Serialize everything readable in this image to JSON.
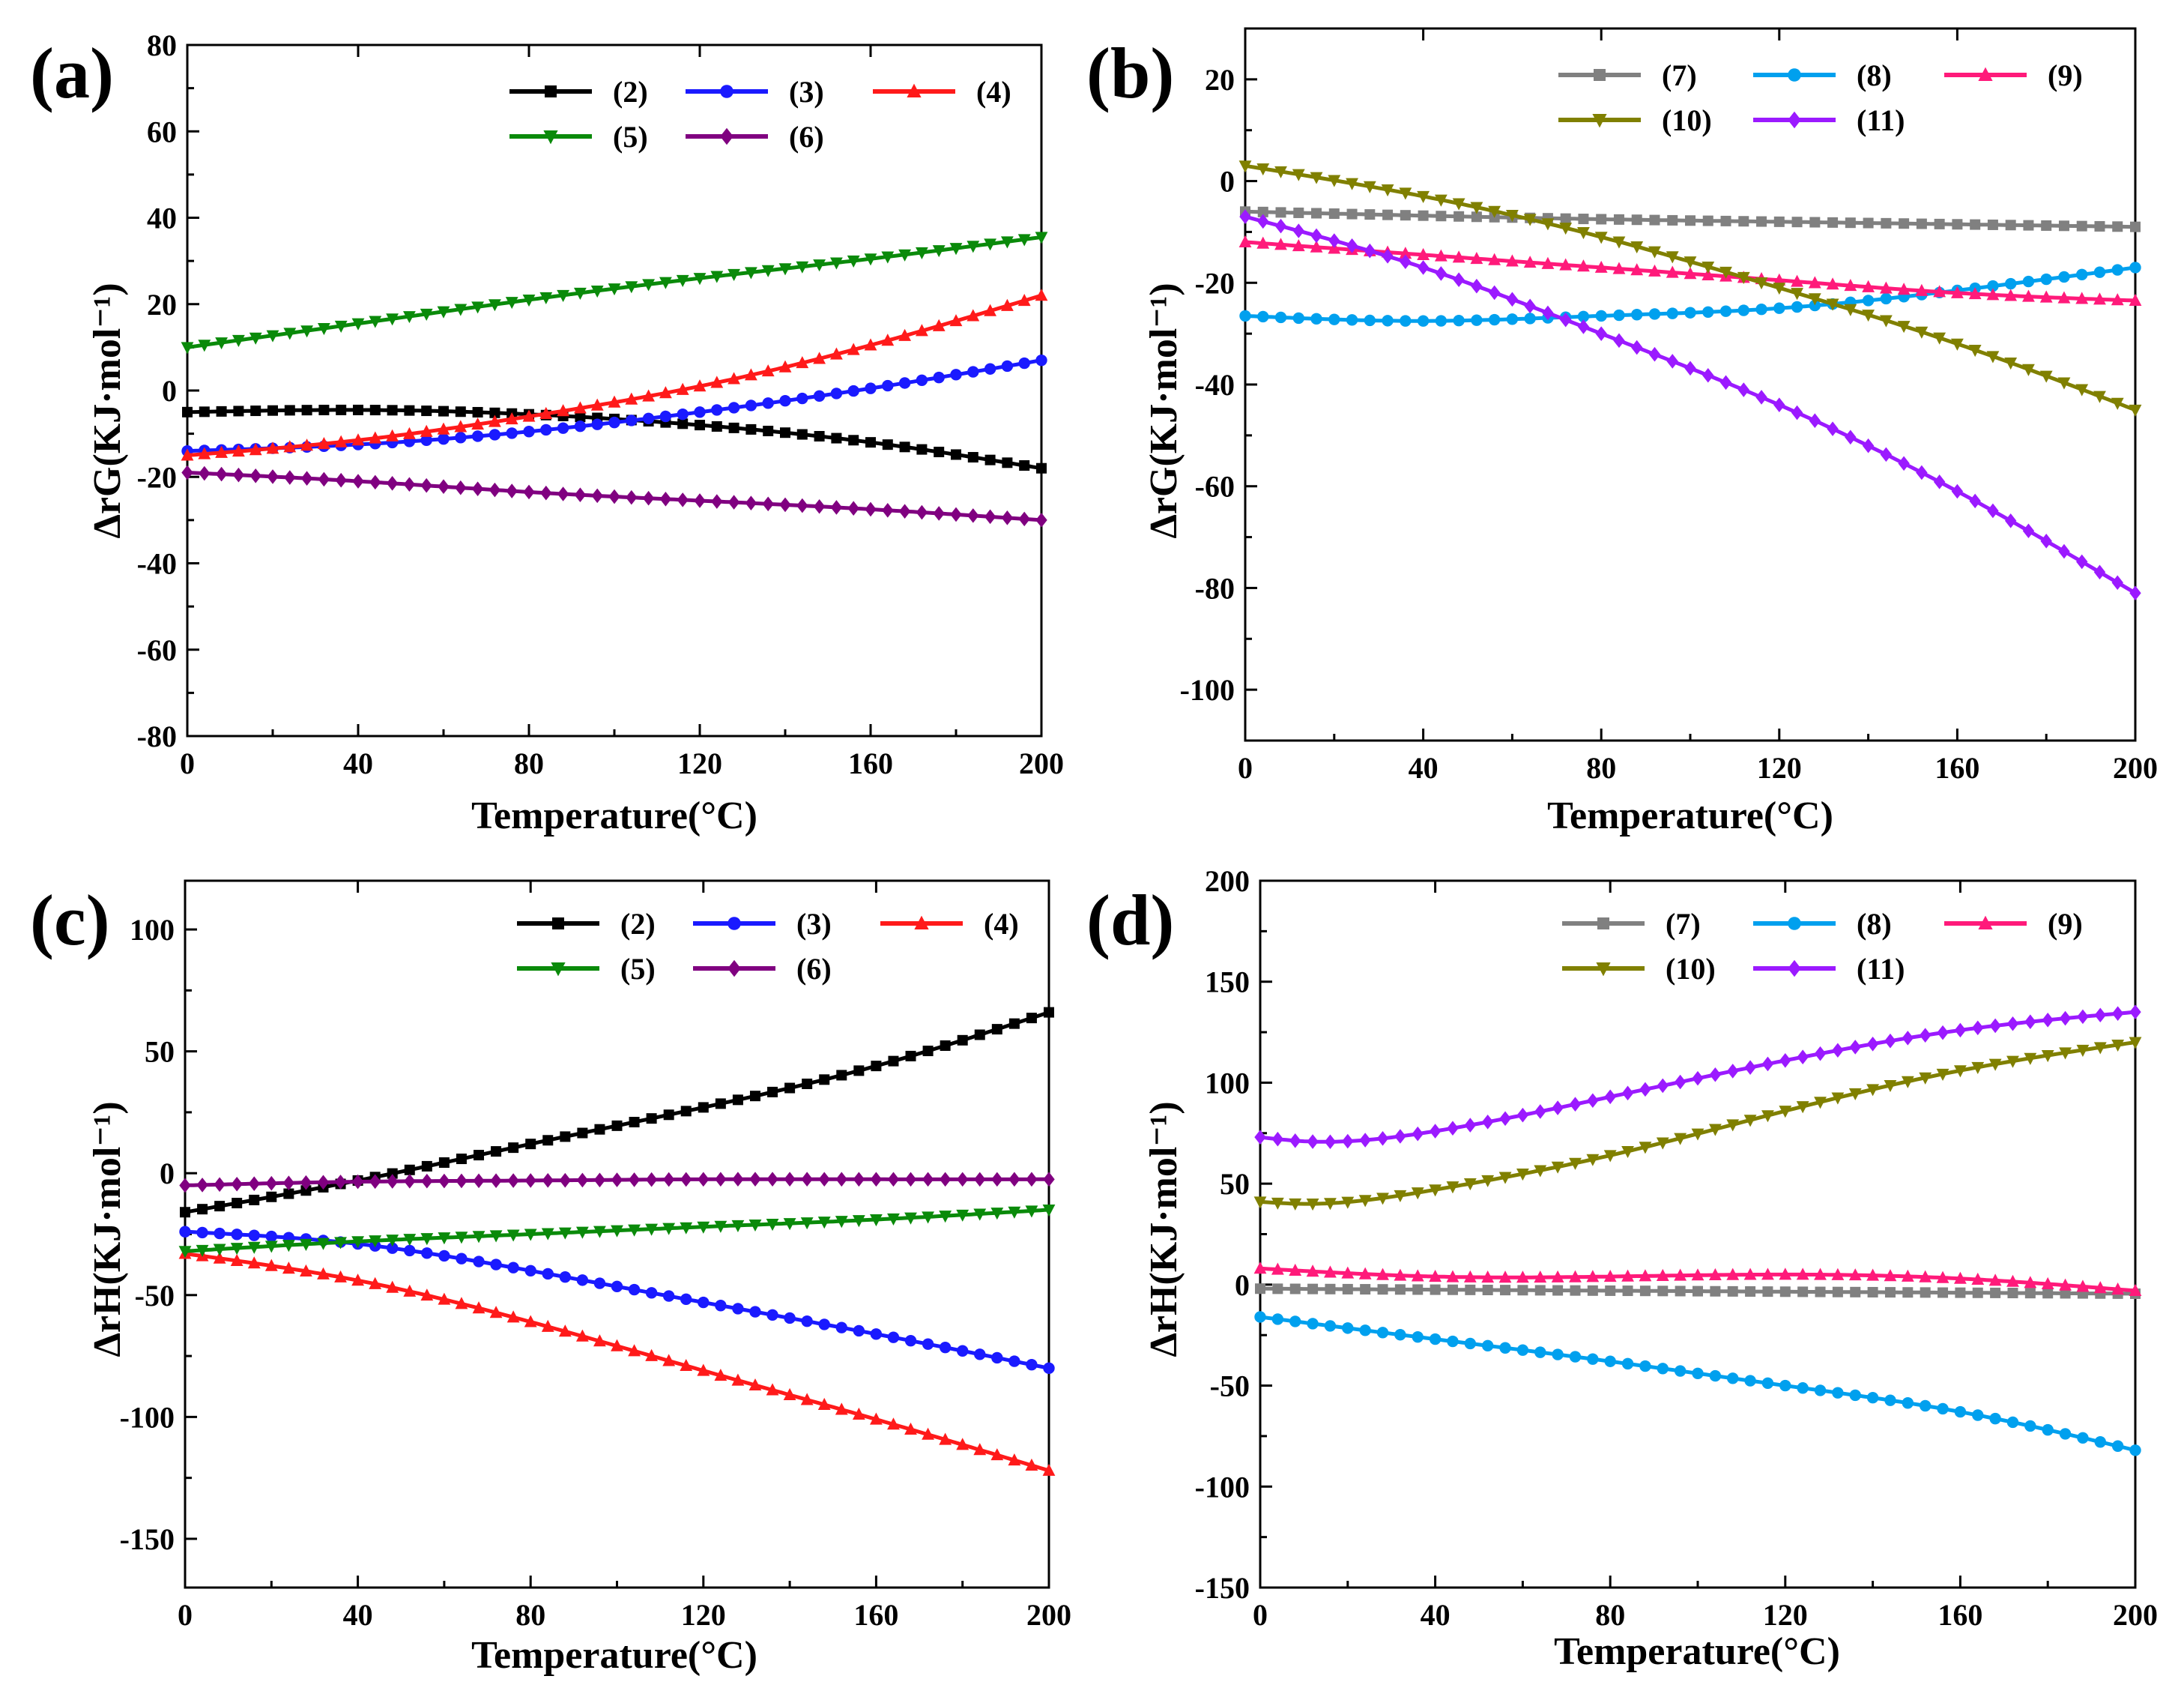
{
  "chart_data": [
    {
      "panel": "(a)",
      "type": "line",
      "xlabel": "Temperature(°C)",
      "ylabel": "ΔrG(KJ·mol⁻¹)",
      "xlim": [
        0,
        200
      ],
      "ylim": [
        -80,
        80
      ],
      "xticks": [
        0,
        40,
        80,
        120,
        160,
        200
      ],
      "yticks": [
        -80,
        -60,
        -40,
        -20,
        0,
        20,
        40,
        60,
        80
      ],
      "legend_position": "top-right",
      "series": [
        {
          "name": "(2)",
          "color": "#000000",
          "marker": "square",
          "x": [
            0,
            40,
            80,
            120,
            160,
            200
          ],
          "y": [
            -5,
            -4.5,
            -5.5,
            -8,
            -12,
            -18
          ]
        },
        {
          "name": "(3)",
          "color": "#1a1aff",
          "marker": "circle",
          "x": [
            0,
            40,
            80,
            120,
            160,
            200
          ],
          "y": [
            -14,
            -12.5,
            -9.5,
            -5,
            0.5,
            7
          ]
        },
        {
          "name": "(4)",
          "color": "#ff1a1a",
          "marker": "triangle-up",
          "x": [
            0,
            40,
            80,
            120,
            160,
            200
          ],
          "y": [
            -15,
            -11.5,
            -6,
            1,
            10.5,
            22
          ]
        },
        {
          "name": "(5)",
          "color": "#0a8a0a",
          "marker": "triangle-down",
          "x": [
            0,
            40,
            80,
            120,
            160,
            200
          ],
          "y": [
            10,
            15.5,
            21,
            26,
            30.5,
            35.5
          ]
        },
        {
          "name": "(6)",
          "color": "#800080",
          "marker": "diamond",
          "x": [
            0,
            40,
            80,
            120,
            160,
            200
          ],
          "y": [
            -19,
            -21,
            -23.5,
            -25.5,
            -27.5,
            -30
          ]
        }
      ]
    },
    {
      "panel": "(b)",
      "type": "line",
      "xlabel": "Temperature(°C)",
      "ylabel": "ΔrG(KJ·mol⁻¹)",
      "xlim": [
        0,
        200
      ],
      "ylim": [
        -110,
        30
      ],
      "xticks": [
        0,
        40,
        80,
        120,
        160,
        200
      ],
      "yticks": [
        -100,
        -80,
        -60,
        -40,
        -20,
        0,
        20
      ],
      "legend_position": "top-right",
      "series": [
        {
          "name": "(7)",
          "color": "#808080",
          "marker": "square",
          "x": [
            0,
            40,
            80,
            120,
            160,
            200
          ],
          "y": [
            -6,
            -6.8,
            -7.5,
            -8,
            -8.5,
            -9
          ]
        },
        {
          "name": "(8)",
          "color": "#00a0ee",
          "marker": "circle",
          "x": [
            0,
            40,
            80,
            120,
            160,
            200
          ],
          "y": [
            -26.5,
            -27.5,
            -26.5,
            -25,
            -21.5,
            -17
          ]
        },
        {
          "name": "(9)",
          "color": "#ff1a7a",
          "marker": "triangle-up",
          "x": [
            0,
            40,
            80,
            120,
            160,
            200
          ],
          "y": [
            -12,
            -14.5,
            -17,
            -19.5,
            -22,
            -23.5
          ]
        },
        {
          "name": "(10)",
          "color": "#808000",
          "marker": "triangle-down",
          "x": [
            0,
            40,
            80,
            120,
            160,
            200
          ],
          "y": [
            3,
            -3,
            -11,
            -21,
            -32,
            -45
          ]
        },
        {
          "name": "(11)",
          "color": "#9b1aff",
          "marker": "diamond",
          "x": [
            0,
            40,
            80,
            120,
            160,
            200
          ],
          "y": [
            -7,
            -17,
            -30,
            -44,
            -61,
            -81
          ]
        }
      ]
    },
    {
      "panel": "(c)",
      "type": "line",
      "xlabel": "Temperature(°C)",
      "ylabel": "ΔrH(KJ·mol⁻¹)",
      "xlim": [
        0,
        200
      ],
      "ylim": [
        -170,
        120
      ],
      "xticks": [
        0,
        40,
        80,
        120,
        160,
        200
      ],
      "yticks": [
        -150,
        -100,
        -50,
        0,
        50,
        100
      ],
      "legend_position": "top-right",
      "series": [
        {
          "name": "(2)",
          "color": "#000000",
          "marker": "square",
          "x": [
            0,
            40,
            80,
            120,
            160,
            200
          ],
          "y": [
            -16,
            -3,
            12,
            27,
            44,
            66
          ]
        },
        {
          "name": "(3)",
          "color": "#1a1aff",
          "marker": "circle",
          "x": [
            0,
            40,
            80,
            120,
            160,
            200
          ],
          "y": [
            -24,
            -29,
            -40,
            -53,
            -66,
            -80
          ]
        },
        {
          "name": "(4)",
          "color": "#ff1a1a",
          "marker": "triangle-up",
          "x": [
            0,
            40,
            80,
            120,
            160,
            200
          ],
          "y": [
            -33,
            -44,
            -61,
            -81,
            -101,
            -122
          ]
        },
        {
          "name": "(5)",
          "color": "#0a8a0a",
          "marker": "triangle-down",
          "x": [
            0,
            40,
            80,
            120,
            160,
            200
          ],
          "y": [
            -32,
            -28,
            -25,
            -22,
            -19,
            -15
          ]
        },
        {
          "name": "(6)",
          "color": "#800080",
          "marker": "diamond",
          "x": [
            0,
            40,
            80,
            120,
            160,
            200
          ],
          "y": [
            -5,
            -3.5,
            -3,
            -2.5,
            -2.5,
            -2.5
          ]
        }
      ]
    },
    {
      "panel": "(d)",
      "type": "line",
      "xlabel": "Temperature(°C)",
      "ylabel": "ΔrH(KJ·mol⁻¹)",
      "xlim": [
        0,
        200
      ],
      "ylim": [
        -150,
        200
      ],
      "xticks": [
        0,
        40,
        80,
        120,
        160,
        200
      ],
      "yticks": [
        -150,
        -100,
        -50,
        0,
        50,
        100,
        150,
        200
      ],
      "legend_position": "top-right",
      "series": [
        {
          "name": "(7)",
          "color": "#808080",
          "marker": "square",
          "x": [
            0,
            40,
            80,
            120,
            160,
            200
          ],
          "y": [
            -2,
            -2.5,
            -3,
            -3.5,
            -4,
            -4.5
          ]
        },
        {
          "name": "(8)",
          "color": "#00a0ee",
          "marker": "circle",
          "x": [
            0,
            40,
            80,
            120,
            160,
            200
          ],
          "y": [
            -16,
            -27,
            -38,
            -50,
            -63,
            -82
          ]
        },
        {
          "name": "(9)",
          "color": "#ff1a7a",
          "marker": "triangle-up",
          "x": [
            0,
            40,
            80,
            120,
            160,
            200
          ],
          "y": [
            8,
            4,
            4,
            5,
            3,
            -3
          ]
        },
        {
          "name": "(10)",
          "color": "#808000",
          "marker": "triangle-down",
          "x": [
            0,
            10,
            40,
            80,
            120,
            160,
            200
          ],
          "y": [
            41,
            40,
            47,
            64,
            86,
            106,
            120
          ]
        },
        {
          "name": "(11)",
          "color": "#9b1aff",
          "marker": "diamond",
          "x": [
            0,
            10,
            40,
            80,
            120,
            160,
            200
          ],
          "y": [
            73,
            71,
            76,
            93,
            111,
            126,
            135
          ]
        }
      ]
    }
  ]
}
